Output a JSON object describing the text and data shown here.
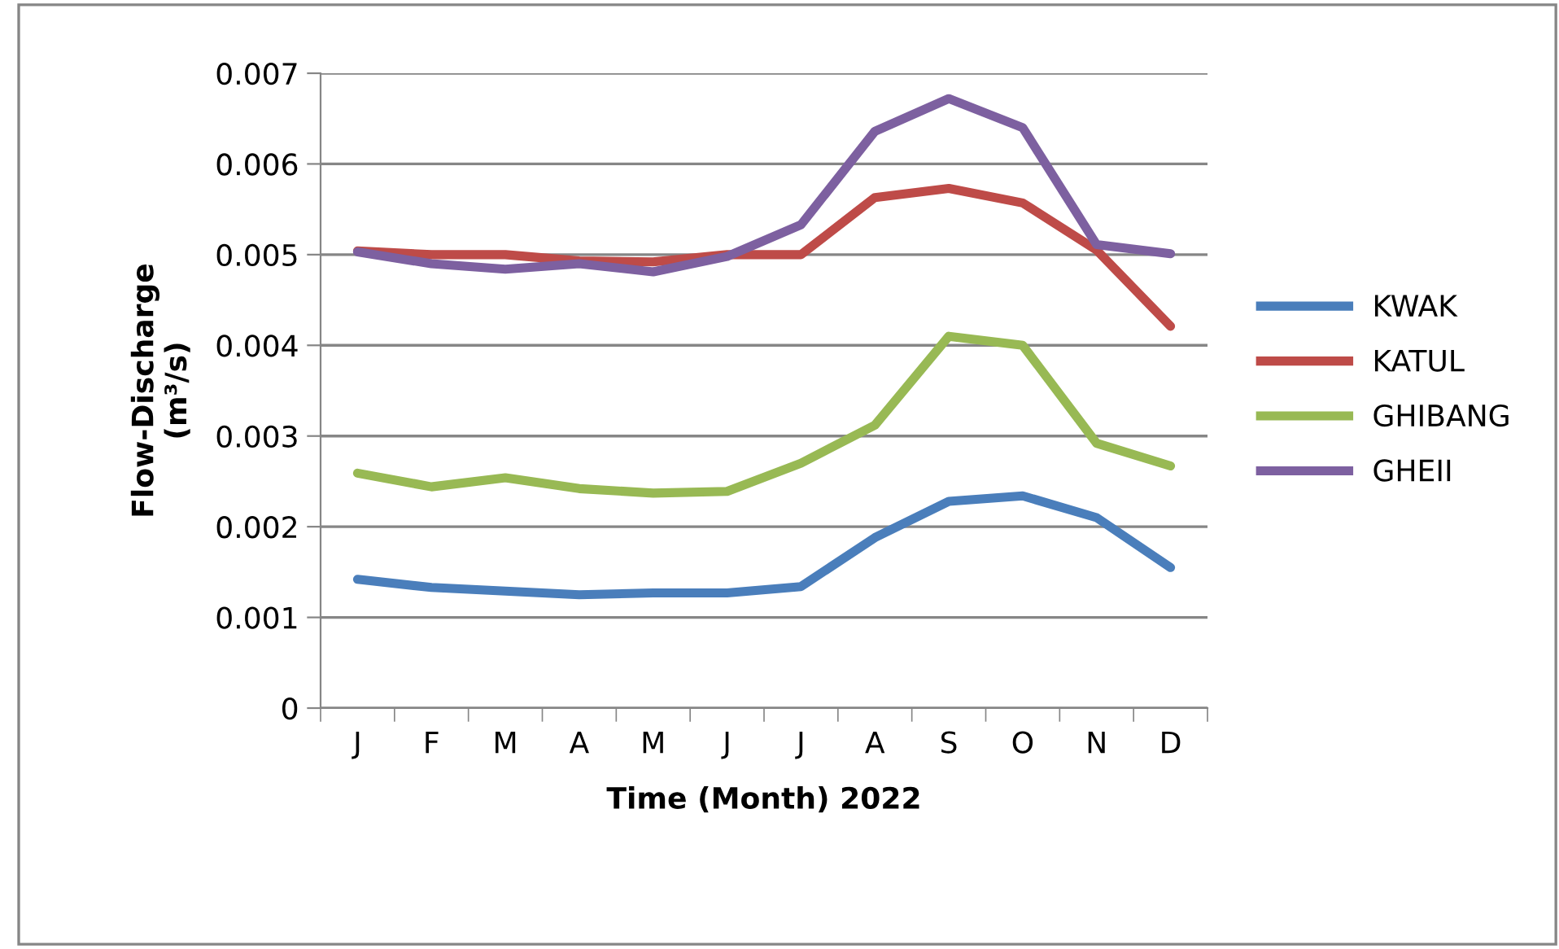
{
  "chart_data": {
    "type": "line",
    "xlabel": "Time (Month) 2022",
    "ylabel": "Flow-Discharge\n(m³/s)",
    "categories": [
      "J",
      "F",
      "M",
      "A",
      "M",
      "J",
      "J",
      "A",
      "S",
      "O",
      "N",
      "D"
    ],
    "series": [
      {
        "name": "KWAK",
        "color": "#4a7ebb",
        "values": [
          0.00142,
          0.00133,
          0.00129,
          0.00125,
          0.00127,
          0.00127,
          0.00134,
          0.00188,
          0.00228,
          0.00234,
          0.0021,
          0.00155
        ]
      },
      {
        "name": "KATUL",
        "color": "#be4b48",
        "values": [
          0.00504,
          0.005,
          0.005,
          0.00493,
          0.00492,
          0.005,
          0.005,
          0.00563,
          0.00573,
          0.00557,
          0.00505,
          0.00421
        ]
      },
      {
        "name": "GHIBANG",
        "color": "#98b954",
        "values": [
          0.00259,
          0.00244,
          0.00254,
          0.00242,
          0.00237,
          0.00239,
          0.0027,
          0.00312,
          0.0041,
          0.004,
          0.00292,
          0.00267
        ]
      },
      {
        "name": "GHEII",
        "color": "#7d60a0",
        "values": [
          0.00503,
          0.0049,
          0.00484,
          0.0049,
          0.00481,
          0.00498,
          0.00533,
          0.00636,
          0.00672,
          0.0064,
          0.00511,
          0.00501
        ]
      }
    ],
    "ylim": [
      0,
      0.007
    ],
    "yticks": [
      0,
      0.001,
      0.002,
      0.003,
      0.004,
      0.005,
      0.006,
      0.007
    ],
    "grid": "y",
    "legend": "right",
    "marker": "none",
    "line_style": "solid"
  }
}
